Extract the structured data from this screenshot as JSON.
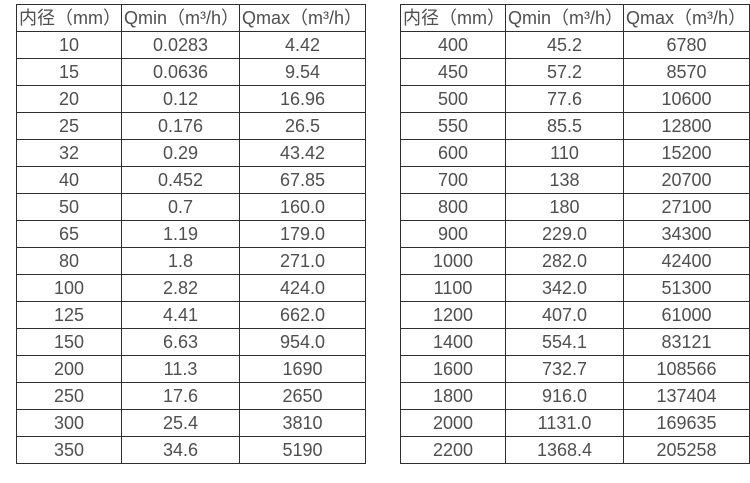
{
  "colors": {
    "background": "#ffffff",
    "table_border": "#2e2e2e",
    "table_text": "#4f4f4f"
  },
  "chart_data": [
    {
      "type": "table",
      "name": "flow-rate-table-small-diameters",
      "columns": [
        "内径（mm）",
        "Qmin（m³/h）",
        "Qmax（m³/h）"
      ],
      "rows": [
        [
          "10",
          "0.0283",
          "4.42"
        ],
        [
          "15",
          "0.0636",
          "9.54"
        ],
        [
          "20",
          "0.12",
          "16.96"
        ],
        [
          "25",
          "0.176",
          "26.5"
        ],
        [
          "32",
          "0.29",
          "43.42"
        ],
        [
          "40",
          "0.452",
          "67.85"
        ],
        [
          "50",
          "0.7",
          "160.0"
        ],
        [
          "65",
          "1.19",
          "179.0"
        ],
        [
          "80",
          "1.8",
          "271.0"
        ],
        [
          "100",
          "2.82",
          "424.0"
        ],
        [
          "125",
          "4.41",
          "662.0"
        ],
        [
          "150",
          "6.63",
          "954.0"
        ],
        [
          "200",
          "11.3",
          "1690"
        ],
        [
          "250",
          "17.6",
          "2650"
        ],
        [
          "300",
          "25.4",
          "3810"
        ],
        [
          "350",
          "34.6",
          "5190"
        ]
      ]
    },
    {
      "type": "table",
      "name": "flow-rate-table-large-diameters",
      "columns": [
        "内径（mm）",
        "Qmin（m³/h）",
        "Qmax（m³/h）"
      ],
      "rows": [
        [
          "400",
          "45.2",
          "6780"
        ],
        [
          "450",
          "57.2",
          "8570"
        ],
        [
          "500",
          "77.6",
          "10600"
        ],
        [
          "550",
          "85.5",
          "12800"
        ],
        [
          "600",
          "110",
          "15200"
        ],
        [
          "700",
          "138",
          "20700"
        ],
        [
          "800",
          "180",
          "27100"
        ],
        [
          "900",
          "229.0",
          "34300"
        ],
        [
          "1000",
          "282.0",
          "42400"
        ],
        [
          "1100",
          "342.0",
          "51300"
        ],
        [
          "1200",
          "407.0",
          "61000"
        ],
        [
          "1400",
          "554.1",
          "83121"
        ],
        [
          "1600",
          "732.7",
          "108566"
        ],
        [
          "1800",
          "916.0",
          "137404"
        ],
        [
          "2000",
          "1131.0",
          "169635"
        ],
        [
          "2200",
          "1368.4",
          "205258"
        ]
      ]
    }
  ]
}
